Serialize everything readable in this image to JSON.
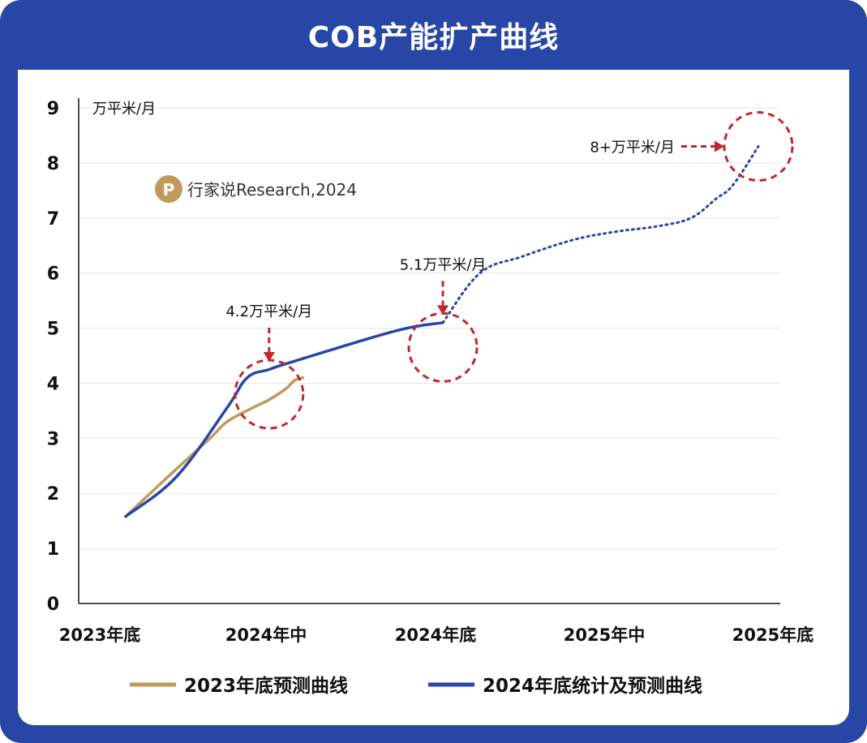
{
  "title": "COB产能扩产曲线",
  "watermark": {
    "logo_text": "P",
    "text": "行家说Research,2024"
  },
  "colors": {
    "frame": "#2746a6",
    "series_2023": "#c09a5b",
    "series_2024": "#2746a6",
    "annotation": "#c0272d"
  },
  "chart_data": {
    "type": "line",
    "title": "COB产能扩产曲线",
    "ylabel": "万平米/月",
    "xlabel": "",
    "ylim": [
      0,
      9
    ],
    "yticks": [
      "0",
      "1",
      "2",
      "3",
      "4",
      "5",
      "6",
      "7",
      "8",
      "9"
    ],
    "categories": [
      "2023年底",
      "2024年中",
      "2024年底",
      "2025年中",
      "2025年底"
    ],
    "grid": true,
    "legend_position": "bottom",
    "series": [
      {
        "name": "2023年底预测曲线",
        "color": "#c09a5b",
        "x": [
          0,
          0.25,
          0.5,
          0.6,
          0.75,
          0.85,
          0.95,
          1.0,
          1.05
        ],
        "y": [
          1.58,
          2.3,
          3.0,
          3.3,
          3.55,
          3.7,
          3.9,
          4.05,
          4.1
        ]
      },
      {
        "name": "2024年底统计及预测曲线",
        "color": "#2746a6",
        "solid": {
          "x": [
            0,
            0.3,
            0.6,
            0.72,
            0.85,
            1.0,
            1.6,
            1.88
          ],
          "y": [
            1.58,
            2.3,
            3.55,
            4.1,
            4.25,
            4.4,
            4.95,
            5.1
          ]
        },
        "forecast_dotted": {
          "x": [
            1.88,
            2.1,
            2.35,
            2.65,
            2.9,
            3.15,
            3.35,
            3.5,
            3.6,
            3.75
          ],
          "y": [
            5.1,
            6.0,
            6.3,
            6.6,
            6.75,
            6.85,
            7.0,
            7.35,
            7.6,
            8.3
          ]
        }
      }
    ],
    "annotations": [
      {
        "text": "4.2万平米/月",
        "x": 0.85,
        "y": 3.8,
        "arrow": "down"
      },
      {
        "text": "5.1万平米/月",
        "x": 1.88,
        "y": 4.65,
        "arrow": "down"
      },
      {
        "text": "8+万平米/月",
        "x": 3.75,
        "y": 8.3,
        "arrow": "right"
      }
    ]
  },
  "legend": [
    {
      "label": "2023年底预测曲线",
      "color": "#c09a5b"
    },
    {
      "label": "2024年底统计及预测曲线",
      "color": "#2746a6"
    }
  ]
}
